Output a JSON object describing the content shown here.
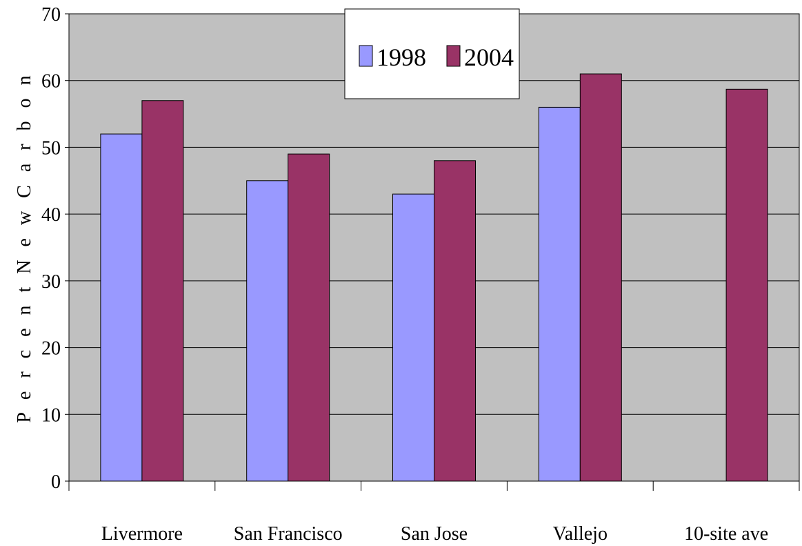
{
  "chart_data": {
    "type": "bar",
    "title": "",
    "xlabel": "",
    "ylabel": "P e r c e n t N e w C a r b o n",
    "ylim": [
      0,
      70
    ],
    "yticks": [
      0,
      10,
      20,
      30,
      40,
      50,
      60,
      70
    ],
    "categories": [
      "Livermore",
      "San Francisco",
      "San Jose",
      "Vallejo",
      "10-site ave"
    ],
    "series": [
      {
        "name": "1998",
        "color": "#9999ff",
        "values": [
          52,
          45,
          43,
          56,
          null
        ]
      },
      {
        "name": "2004",
        "color": "#993366",
        "values": [
          57,
          49,
          48,
          61,
          58.7
        ]
      }
    ],
    "grid": true,
    "plot_background": "#c0c0c0",
    "legend_position": "top-center"
  }
}
